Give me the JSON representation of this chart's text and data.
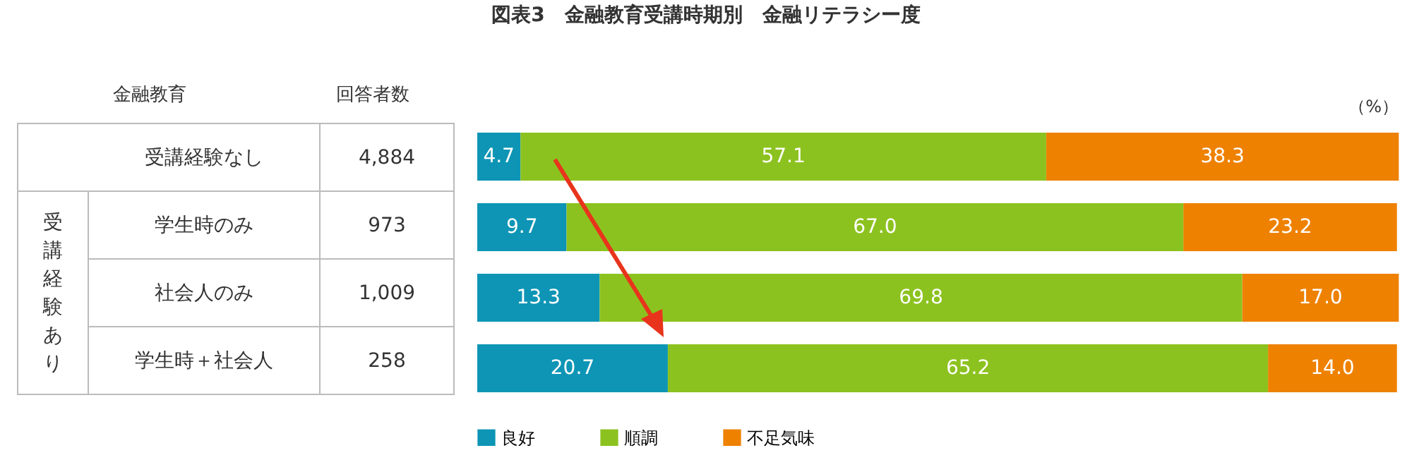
{
  "chart_data": {
    "type": "bar",
    "orientation": "horizontal",
    "stacked": true,
    "title": "図表3　金融教育受講時期別　金融リテラシー度",
    "xlabel": "（%）",
    "categories": [
      "受講経験なし",
      "学生時のみ",
      "社会人のみ",
      "学生時＋社会人"
    ],
    "series": [
      {
        "name": "良好",
        "color": "#0e95b5",
        "values": [
          4.7,
          9.7,
          13.3,
          20.7
        ],
        "value_labels": [
          "4.7",
          "9.7",
          "13.3",
          "20.7"
        ]
      },
      {
        "name": "順調",
        "color": "#8cc21f",
        "values": [
          57.1,
          67.0,
          69.8,
          65.2
        ],
        "value_labels": [
          "57.1",
          "67.0",
          "69.8",
          "65.2"
        ]
      },
      {
        "name": "不足気味",
        "color": "#ee8100",
        "values": [
          38.3,
          23.2,
          17.0,
          14.0
        ],
        "value_labels": [
          "38.3",
          "23.2",
          "17.0",
          "14.0"
        ]
      }
    ],
    "xlim": [
      0,
      100
    ],
    "legend": "bottom left",
    "tick_labels": false,
    "annotations": [
      "金融教育",
      "回答者数",
      "受講経験あり",
      "4,884",
      "973",
      "1,009",
      "258"
    ]
  }
}
